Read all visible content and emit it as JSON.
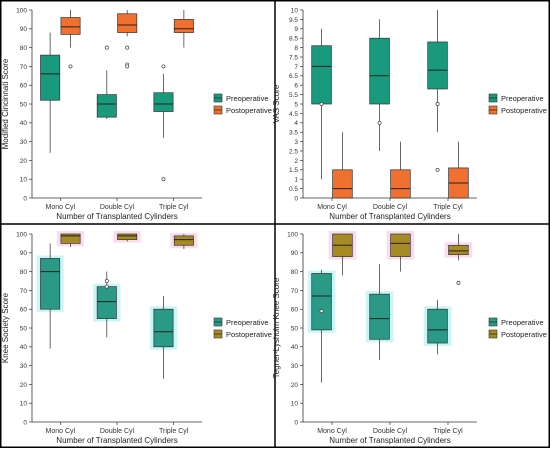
{
  "chart_data": [
    {
      "type": "boxplot",
      "ylabel": "Modified Cincinnati Score",
      "xlabel": "Number of Transplanted Cylinders",
      "categories": [
        "Mono Cyl",
        "Double Cyl",
        "Triple Cyl"
      ],
      "ylim": [
        0,
        100
      ],
      "yticks": [
        0,
        10,
        20,
        30,
        40,
        50,
        60,
        70,
        80,
        90,
        100
      ],
      "legend_position": "right",
      "grid": false,
      "series": [
        {
          "name": "Preoperative",
          "color": "#1a9a7d",
          "boxes": [
            {
              "min": 24,
              "q1": 52,
              "median": 66,
              "q3": 76,
              "max": 88,
              "outliers": []
            },
            {
              "min": 42,
              "q1": 43,
              "median": 50,
              "q3": 55,
              "max": 68,
              "outliers": [
                80
              ]
            },
            {
              "min": 32,
              "q1": 46,
              "median": 50,
              "q3": 56,
              "max": 66,
              "outliers": [
                70,
                10
              ]
            }
          ]
        },
        {
          "name": "Postoperative",
          "color": "#f07030",
          "boxes": [
            {
              "min": 80,
              "q1": 87,
              "median": 91,
              "q3": 96,
              "max": 100,
              "outliers": [
                70
              ]
            },
            {
              "min": 86,
              "q1": 88,
              "median": 92,
              "q3": 98,
              "max": 100,
              "outliers": [
                80,
                71,
                70
              ]
            },
            {
              "min": 80,
              "q1": 88,
              "median": 90,
              "q3": 95,
              "max": 100,
              "outliers": []
            }
          ]
        }
      ]
    },
    {
      "type": "boxplot",
      "ylabel": "VAS Score",
      "xlabel": "Number of Transplanted Cylinders",
      "categories": [
        "Mono Cyl",
        "Double Cyl",
        "Triple Cyl"
      ],
      "ylim": [
        0,
        10
      ],
      "yticks": [
        0,
        0.5,
        1,
        1.5,
        2,
        2.5,
        3,
        3.5,
        4,
        4.5,
        5,
        5.5,
        6,
        6.5,
        7,
        7.5,
        8,
        8.5,
        9,
        9.5,
        10
      ],
      "ytick_labels": [
        "0",
        "0.5",
        "1",
        "1.5",
        "2",
        "2.5",
        "3",
        "3.5",
        "4",
        "4.5",
        "5",
        "5.5",
        "6",
        "6.5",
        "7",
        "7.5",
        "8",
        "8.5",
        "9",
        "9.5",
        "10"
      ],
      "legend_position": "right",
      "grid": false,
      "series": [
        {
          "name": "Preoperative",
          "color": "#1a9a7d",
          "boxes": [
            {
              "min": 1,
              "q1": 5,
              "median": 7,
              "q3": 8.1,
              "max": 9,
              "outliers": [
                5
              ]
            },
            {
              "min": 2.5,
              "q1": 5,
              "median": 6.5,
              "q3": 8.5,
              "max": 9.5,
              "outliers": [
                4
              ]
            },
            {
              "min": 3.5,
              "q1": 5.8,
              "median": 6.8,
              "q3": 8.3,
              "max": 10,
              "outliers": [
                5,
                1.5
              ]
            }
          ]
        },
        {
          "name": "Postoperative",
          "color": "#f07030",
          "boxes": [
            {
              "min": 0,
              "q1": 0,
              "median": 0.5,
              "q3": 1.5,
              "max": 3.5,
              "outliers": []
            },
            {
              "min": 0,
              "q1": 0,
              "median": 0.5,
              "q3": 1.5,
              "max": 3,
              "outliers": []
            },
            {
              "min": 0,
              "q1": 0,
              "median": 0.8,
              "q3": 1.6,
              "max": 3,
              "outliers": []
            }
          ]
        }
      ]
    },
    {
      "type": "boxplot",
      "ylabel": "Knee Society Score",
      "xlabel": "Number of Transplanted Cylinders",
      "categories": [
        "Mono Cyl",
        "Double Cyl",
        "Triple Cyl"
      ],
      "ylim": [
        0,
        100
      ],
      "yticks": [
        0,
        10,
        20,
        30,
        40,
        50,
        60,
        70,
        80,
        90,
        100
      ],
      "legend_position": "right",
      "grid": false,
      "series": [
        {
          "name": "Preoperative",
          "color": "#2a9a86",
          "boxes": [
            {
              "min": 39,
              "q1": 60,
              "median": 80,
              "q3": 87,
              "max": 95,
              "outliers": []
            },
            {
              "min": 45,
              "q1": 55,
              "median": 64,
              "q3": 72,
              "max": 80,
              "outliers": [
                75,
                72
              ]
            },
            {
              "min": 23,
              "q1": 40,
              "median": 48,
              "q3": 60,
              "max": 67,
              "outliers": []
            }
          ]
        },
        {
          "name": "Postoperative",
          "color": "#a68a24",
          "boxes": [
            {
              "min": 93,
              "q1": 95,
              "median": 99,
              "q3": 100,
              "max": 100,
              "outliers": []
            },
            {
              "min": 96,
              "q1": 97,
              "median": 99,
              "q3": 100,
              "max": 100,
              "outliers": []
            },
            {
              "min": 92,
              "q1": 94,
              "median": 97,
              "q3": 99,
              "max": 100,
              "outliers": []
            }
          ]
        }
      ]
    },
    {
      "type": "boxplot",
      "ylabel": "Tegner-Lysholm Knee Score",
      "xlabel": "Number of Transplanted Cylinders",
      "categories": [
        "Mono Cyl",
        "Double Cyl",
        "Triple Cyl"
      ],
      "ylim": [
        0,
        100
      ],
      "yticks": [
        0,
        10,
        20,
        30,
        40,
        50,
        60,
        70,
        80,
        90,
        100
      ],
      "legend_position": "right",
      "grid": false,
      "series": [
        {
          "name": "Preoperative",
          "color": "#2a9a86",
          "boxes": [
            {
              "min": 21,
              "q1": 49,
              "median": 67,
              "q3": 79,
              "max": 81,
              "outliers": [
                59
              ]
            },
            {
              "min": 33,
              "q1": 44,
              "median": 55,
              "q3": 68,
              "max": 84,
              "outliers": []
            },
            {
              "min": 36,
              "q1": 42,
              "median": 49,
              "q3": 60,
              "max": 65,
              "outliers": []
            }
          ]
        },
        {
          "name": "Postoperative",
          "color": "#a68a24",
          "boxes": [
            {
              "min": 78,
              "q1": 88,
              "median": 94,
              "q3": 100,
              "max": 100,
              "outliers": []
            },
            {
              "min": 80,
              "q1": 88,
              "median": 95,
              "q3": 100,
              "max": 100,
              "outliers": []
            },
            {
              "min": 86,
              "q1": 89,
              "median": 91,
              "q3": 94,
              "max": 100,
              "outliers": [
                74
              ]
            }
          ]
        }
      ]
    }
  ]
}
